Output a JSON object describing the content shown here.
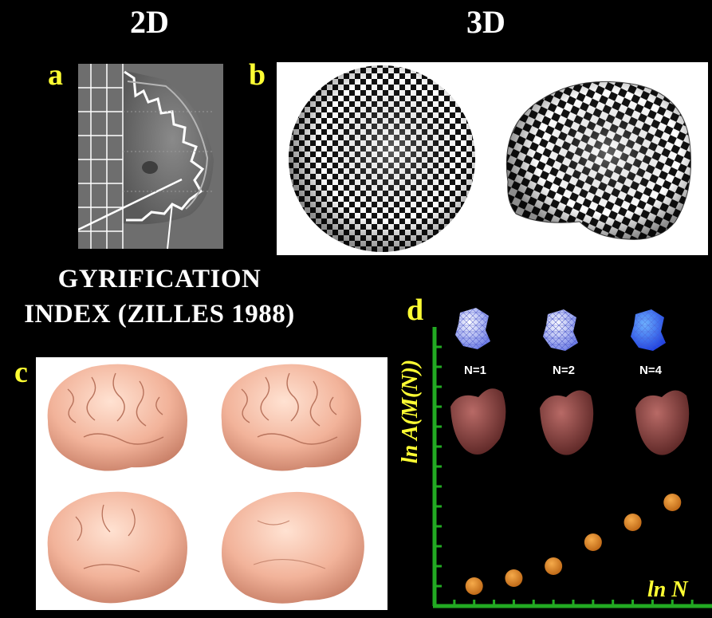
{
  "headers": {
    "left": "2D",
    "right": "3D"
  },
  "panels": {
    "a": {
      "label": "a"
    },
    "b": {
      "label": "b"
    },
    "c": {
      "label": "c"
    },
    "d": {
      "label": "d",
      "n_labels": [
        "N=1",
        "N=2",
        "N=4"
      ],
      "y_axis_label": "ln A(M(N))",
      "x_axis_label": "ln N"
    }
  },
  "caption_lines": [
    "GYRIFICATION",
    "INDEX (ZILLES 1988)"
  ],
  "colors": {
    "label_yellow": "#ffff33",
    "axis_green": "#22aa22",
    "dot_orange": "#e08a2a",
    "brain_pink": "#f2b39a",
    "mesh_blue": "#2f66ff"
  },
  "chart_data": {
    "type": "scatter",
    "x": [
      1,
      2,
      3,
      4,
      5,
      6
    ],
    "y": [
      1.0,
      1.4,
      2.0,
      3.2,
      4.2,
      5.2
    ],
    "xlabel": "ln N",
    "ylabel": "ln A(M(N))",
    "xlim": [
      0,
      7
    ],
    "ylim": [
      0,
      14
    ]
  }
}
